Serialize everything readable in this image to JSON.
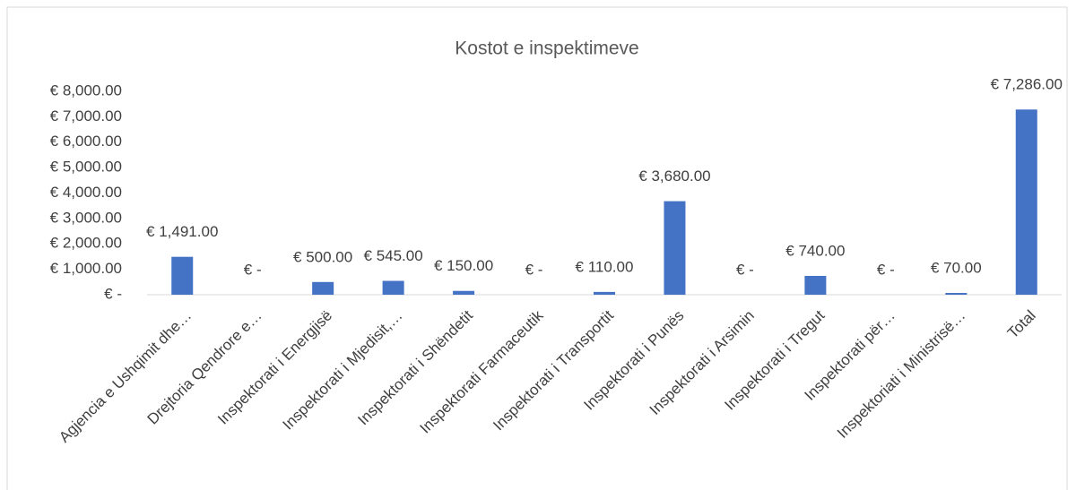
{
  "chart_data": {
    "type": "bar",
    "title": "Kostot e inspektimeve",
    "categories": [
      "Agjencia e Ushqimit dhe…",
      "Drejtoria Qendrore e…",
      "Inspektorati i Energjisë",
      "Inspektorati i Mjedisit,…",
      "Inspektorati i Shëndetit",
      "Inspektorati Farmaceutik",
      "Inspektorati i Transportit",
      "Inspektorati i Punës",
      "Inspektorati i Arsimin",
      "Inspektorati i Tregut",
      "Inspektorati për…",
      "Inspektoriati i Ministrisë…",
      "Total"
    ],
    "values": [
      1491,
      0,
      500,
      545,
      150,
      0,
      110,
      3680,
      0,
      740,
      0,
      70,
      7286
    ],
    "value_labels": [
      "€ 1,491.00",
      "€ -",
      "€ 500.00",
      "€ 545.00",
      "€ 150.00",
      "€ -",
      "€ 110.00",
      "€ 3,680.00",
      "€ -",
      "€ 740.00",
      "€ -",
      "€ 70.00",
      "€ 7,286.00"
    ],
    "color": "#4472c4",
    "ylim": [
      0,
      8000
    ],
    "yticks": [
      {
        "value": 0,
        "label": "€ -"
      },
      {
        "value": 1000,
        "label": "€ 1,000.00"
      },
      {
        "value": 2000,
        "label": "€ 2,000.00"
      },
      {
        "value": 3000,
        "label": "€ 3,000.00"
      },
      {
        "value": 4000,
        "label": "€ 4,000.00"
      },
      {
        "value": 5000,
        "label": "€ 5,000.00"
      },
      {
        "value": 6000,
        "label": "€ 6,000.00"
      },
      {
        "value": 7000,
        "label": "€ 7,000.00"
      },
      {
        "value": 8000,
        "label": "€ 8,000.00"
      }
    ],
    "grid": false
  }
}
